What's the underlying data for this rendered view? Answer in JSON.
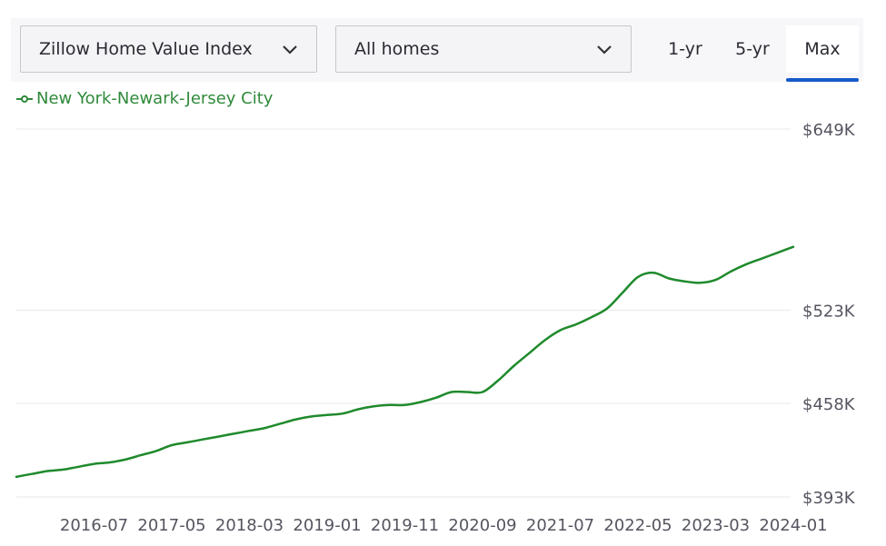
{
  "controls": {
    "metric_select": "Zillow Home Value Index",
    "home_type_select": "All homes",
    "range_tabs": [
      "1-yr",
      "5-yr",
      "Max"
    ],
    "active_tab": "Max",
    "accent_color": "#1559c8"
  },
  "chart_data": {
    "type": "line",
    "legend": [
      "New York-Newark-Jersey City"
    ],
    "series": [
      {
        "name": "New York-Newark-Jersey City",
        "color": "#1f8a2c",
        "points": [
          [
            "2015-09",
            407
          ],
          [
            "2015-11",
            409
          ],
          [
            "2016-01",
            411
          ],
          [
            "2016-03",
            412
          ],
          [
            "2016-05",
            414
          ],
          [
            "2016-07",
            416
          ],
          [
            "2016-09",
            417
          ],
          [
            "2016-11",
            419
          ],
          [
            "2017-01",
            422
          ],
          [
            "2017-03",
            425
          ],
          [
            "2017-05",
            429
          ],
          [
            "2017-07",
            431
          ],
          [
            "2017-09",
            433
          ],
          [
            "2017-11",
            435
          ],
          [
            "2018-01",
            437
          ],
          [
            "2018-03",
            439
          ],
          [
            "2018-05",
            441
          ],
          [
            "2018-07",
            444
          ],
          [
            "2018-09",
            447
          ],
          [
            "2018-11",
            449
          ],
          [
            "2019-01",
            450
          ],
          [
            "2019-03",
            451
          ],
          [
            "2019-05",
            454
          ],
          [
            "2019-07",
            456
          ],
          [
            "2019-09",
            457
          ],
          [
            "2019-11",
            457
          ],
          [
            "2020-01",
            459
          ],
          [
            "2020-03",
            462
          ],
          [
            "2020-05",
            466
          ],
          [
            "2020-07",
            466
          ],
          [
            "2020-09",
            466
          ],
          [
            "2020-11",
            474
          ],
          [
            "2021-01",
            484
          ],
          [
            "2021-03",
            493
          ],
          [
            "2021-05",
            502
          ],
          [
            "2021-07",
            509
          ],
          [
            "2021-09",
            513
          ],
          [
            "2021-11",
            518
          ],
          [
            "2022-01",
            524
          ],
          [
            "2022-03",
            535
          ],
          [
            "2022-05",
            546
          ],
          [
            "2022-07",
            549
          ],
          [
            "2022-09",
            545
          ],
          [
            "2022-11",
            543
          ],
          [
            "2023-01",
            542
          ],
          [
            "2023-03",
            544
          ],
          [
            "2023-05",
            550
          ],
          [
            "2023-07",
            555
          ],
          [
            "2023-09",
            559
          ],
          [
            "2023-11",
            563
          ],
          [
            "2024-01",
            567
          ]
        ]
      }
    ],
    "x_ticks": [
      "2016-07",
      "2017-05",
      "2018-03",
      "2019-01",
      "2019-11",
      "2020-09",
      "2021-07",
      "2022-05",
      "2023-03",
      "2024-01"
    ],
    "y_ticks": [
      {
        "value": 393,
        "label": "$393K"
      },
      {
        "value": 458,
        "label": "$458K"
      },
      {
        "value": 523,
        "label": "$523K"
      },
      {
        "value": 649,
        "label": "$649K"
      }
    ],
    "ylim": [
      393,
      649
    ],
    "xlim": [
      "2015-09",
      "2024-01"
    ],
    "grid": true,
    "legend_position": "top-left"
  }
}
